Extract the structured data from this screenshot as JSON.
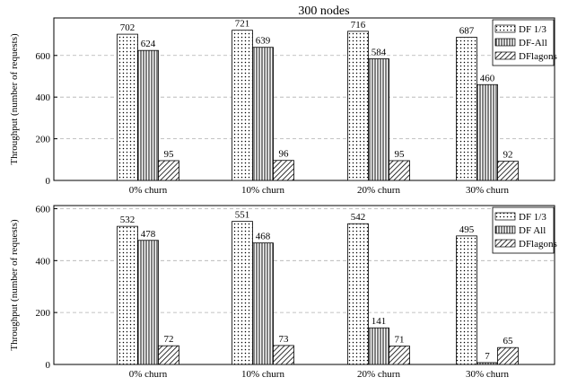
{
  "chart_data": [
    {
      "type": "bar",
      "title": "300 nodes",
      "xlabel": "",
      "ylabel": "Throughput (number of requests)",
      "categories": [
        "0% churn",
        "10% churn",
        "20% churn",
        "30% churn"
      ],
      "ylim": [
        0,
        780
      ],
      "yticks": [
        0,
        200,
        400,
        600
      ],
      "grid": "horizontal dashed",
      "legend_position": "top-right",
      "series": [
        {
          "name": "DF 1/3",
          "pattern": "dots",
          "values": [
            702,
            721,
            716,
            687
          ]
        },
        {
          "name": "DF-All",
          "pattern": "vertical-lines",
          "values": [
            624,
            639,
            584,
            460
          ]
        },
        {
          "name": "DFlagons",
          "pattern": "diagonal-lines",
          "values": [
            95,
            96,
            95,
            92
          ]
        }
      ]
    },
    {
      "type": "bar",
      "title": "",
      "xlabel": "",
      "ylabel": "Throughput (number of requests)",
      "categories": [
        "0% churn",
        "10% churn",
        "20% churn",
        "30% churn"
      ],
      "ylim": [
        0,
        612
      ],
      "yticks": [
        0,
        200,
        400,
        600
      ],
      "grid": "horizontal dashed",
      "legend_position": "top-right",
      "series": [
        {
          "name": "DF 1/3",
          "pattern": "dots",
          "values": [
            532,
            551,
            542,
            495
          ]
        },
        {
          "name": "DF All",
          "pattern": "vertical-lines",
          "values": [
            478,
            468,
            141,
            7
          ]
        },
        {
          "name": "DFlagons",
          "pattern": "diagonal-lines",
          "values": [
            72,
            73,
            71,
            65
          ]
        }
      ]
    }
  ]
}
